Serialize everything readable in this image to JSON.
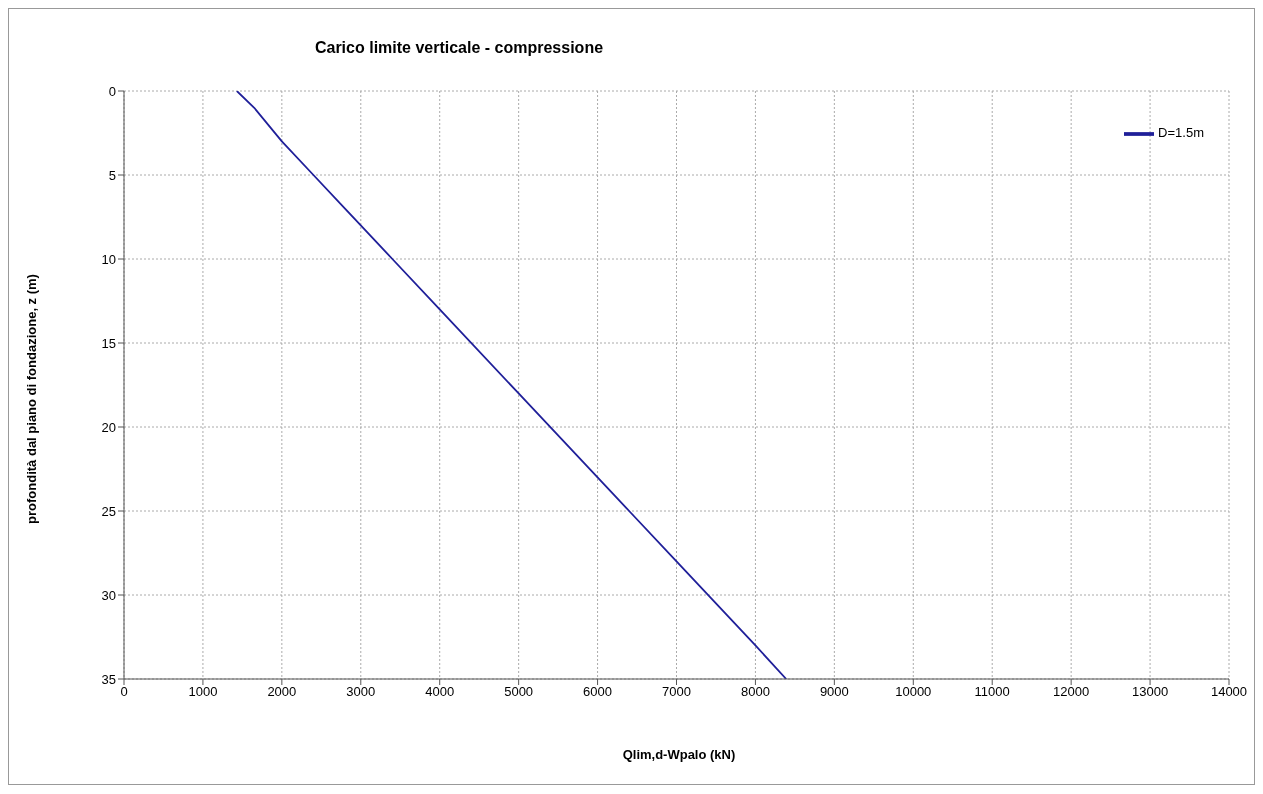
{
  "chart_data": {
    "type": "line",
    "title": "Carico limite verticale - compressione",
    "xlabel": "Qlim,d-Wpalo (kN)",
    "ylabel": "profondità dal piano di fondazione, z (m)",
    "x": [
      1430,
      1650,
      2000,
      2400,
      2800,
      3000,
      3400,
      4000,
      5000,
      6000,
      6400,
      7000,
      8000,
      8390
    ],
    "series": [
      {
        "name": "D=1.5m",
        "color": "#1f1f99",
        "values": [
          0,
          1,
          3,
          5,
          7,
          8,
          10,
          13,
          18,
          23,
          25,
          28,
          33,
          35
        ]
      }
    ],
    "xlim": [
      0,
      14000
    ],
    "xticks": [
      0,
      1000,
      2000,
      3000,
      4000,
      5000,
      6000,
      7000,
      8000,
      9000,
      10000,
      11000,
      12000,
      13000,
      14000
    ],
    "ylim": [
      35,
      0
    ],
    "yticks": [
      0,
      5,
      10,
      15,
      20,
      25,
      30,
      35
    ],
    "grid": true,
    "legend": "top right",
    "marker": "none",
    "line_style": "solid"
  }
}
